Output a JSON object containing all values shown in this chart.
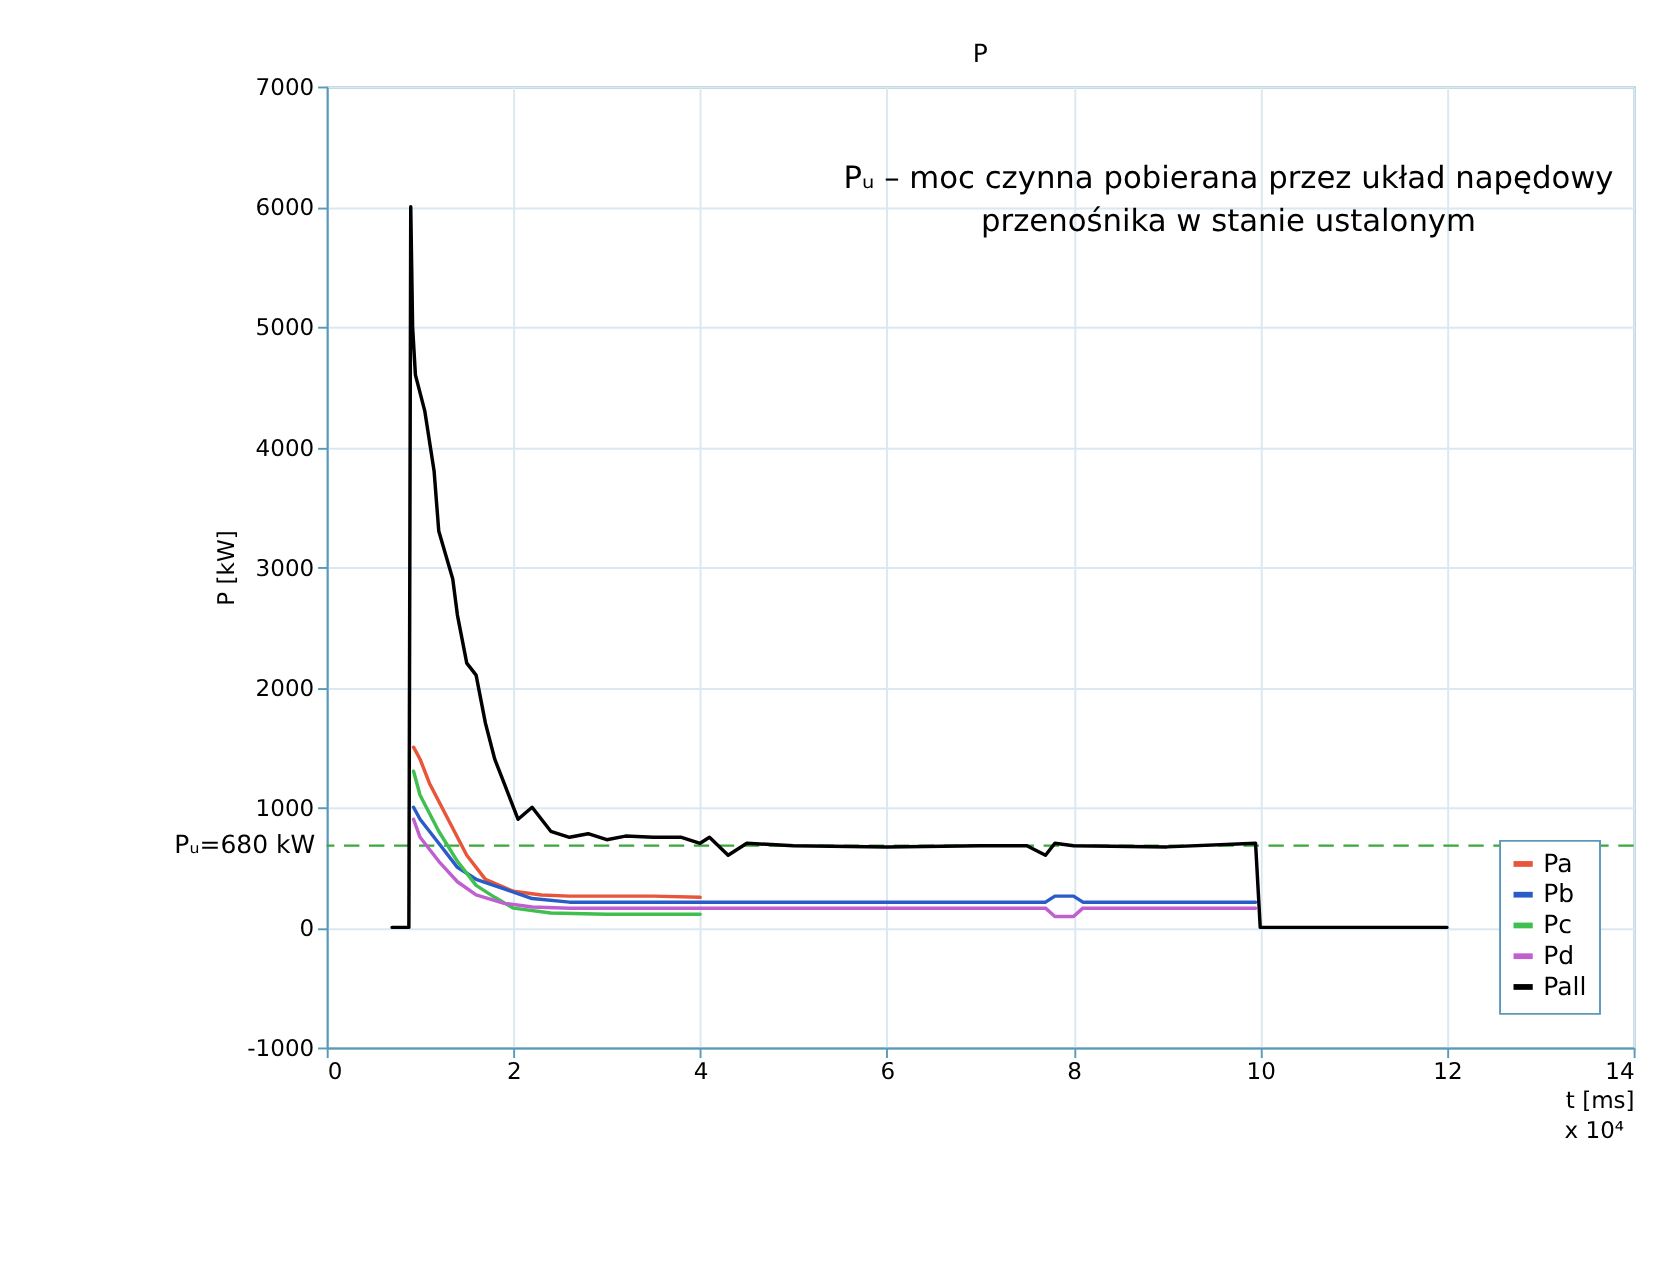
{
  "chart_data": {
    "type": "line",
    "title": "P",
    "xlabel": "t [ms]",
    "ylabel": "P [kW]",
    "annotations": [
      "Pᵤ – moc czynna pobierana przez układ napędowy\nprzenośnika w stanie ustalonym",
      "x 10⁴"
    ],
    "xlim": [
      0,
      14
    ],
    "xticks": [
      0,
      2,
      4,
      6,
      8,
      10,
      12,
      14
    ],
    "ylim": [
      -1000,
      7000
    ],
    "yticks": [
      -1000,
      0,
      1000,
      2000,
      3000,
      4000,
      5000,
      6000,
      7000
    ],
    "grid": true,
    "legend": "bottom right",
    "line_style": "solid",
    "marker": "none",
    "ref_lines": [
      {
        "axis": "y",
        "value": 680,
        "label": "Pᵤ=680 kW",
        "color": "#3aa83a",
        "line_style": "dashed"
      }
    ],
    "series": [
      {
        "name": "Pa",
        "color": "#e8553a",
        "x": [
          0.93,
          1.0,
          1.1,
          1.3,
          1.5,
          1.7,
          2.0,
          2.3,
          2.6,
          3.0,
          3.5,
          4.0
        ],
        "values": [
          1500,
          1400,
          1200,
          900,
          600,
          400,
          300,
          270,
          260,
          260,
          260,
          250
        ]
      },
      {
        "name": "Pb",
        "color": "#2a5cc8",
        "x": [
          0.93,
          1.0,
          1.2,
          1.4,
          1.6,
          1.9,
          2.2,
          2.6,
          3.0,
          3.5,
          4.0,
          5.0,
          6.0,
          7.0,
          7.7,
          7.8,
          8.0,
          8.1,
          9.0,
          9.95
        ],
        "values": [
          1000,
          900,
          700,
          500,
          400,
          320,
          240,
          210,
          210,
          210,
          210,
          210,
          210,
          210,
          210,
          260,
          260,
          210,
          210,
          210
        ]
      },
      {
        "name": "Pc",
        "color": "#3fbf4f",
        "x": [
          0.93,
          1.0,
          1.2,
          1.4,
          1.6,
          1.8,
          2.0,
          2.4,
          3.0,
          3.5,
          4.0
        ],
        "values": [
          1300,
          1100,
          800,
          550,
          350,
          250,
          160,
          120,
          110,
          110,
          110
        ]
      },
      {
        "name": "Pd",
        "color": "#c060d0",
        "x": [
          0.93,
          1.0,
          1.2,
          1.4,
          1.6,
          1.9,
          2.2,
          2.6,
          3.0,
          3.5,
          4.0,
          5.0,
          6.0,
          7.0,
          7.7,
          7.8,
          8.0,
          8.1,
          9.0,
          9.95
        ],
        "values": [
          900,
          750,
          550,
          380,
          270,
          200,
          170,
          160,
          160,
          160,
          160,
          160,
          160,
          160,
          160,
          90,
          90,
          160,
          160,
          160
        ]
      },
      {
        "name": "Pall",
        "color": "#000000",
        "x": [
          0.7,
          0.88,
          0.9,
          0.92,
          0.95,
          1.05,
          1.15,
          1.2,
          1.35,
          1.4,
          1.5,
          1.6,
          1.7,
          1.8,
          1.9,
          2.0,
          2.05,
          2.2,
          2.4,
          2.6,
          2.8,
          3.0,
          3.2,
          3.5,
          3.8,
          4.0,
          4.1,
          4.3,
          4.5,
          5.0,
          6.0,
          7.0,
          7.5,
          7.7,
          7.8,
          8.0,
          9.0,
          9.95,
          10.0,
          12.0
        ],
        "values": [
          0,
          0,
          6000,
          5000,
          4600,
          4300,
          3800,
          3300,
          2900,
          2600,
          2200,
          2100,
          1700,
          1400,
          1200,
          1000,
          900,
          1000,
          800,
          750,
          780,
          730,
          760,
          750,
          750,
          700,
          750,
          600,
          700,
          680,
          670,
          680,
          680,
          600,
          700,
          680,
          670,
          700,
          0,
          0
        ]
      }
    ]
  }
}
